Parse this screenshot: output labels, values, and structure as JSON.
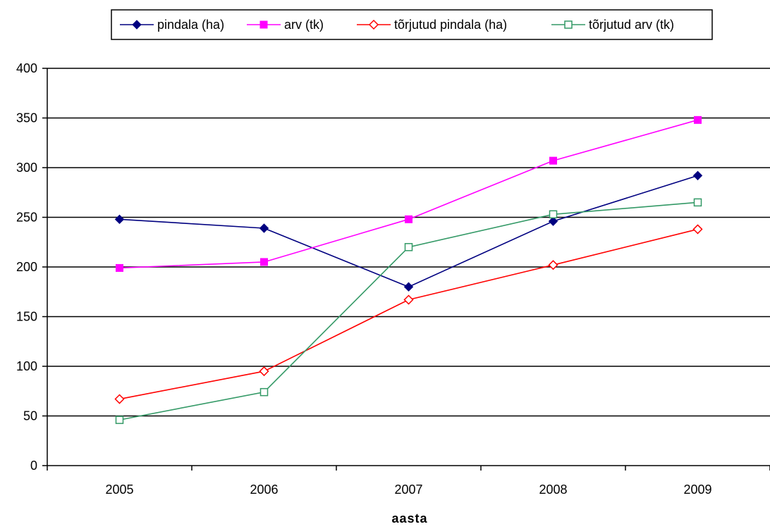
{
  "chart_data": {
    "type": "line",
    "title": "",
    "xlabel": "aasta",
    "ylabel": "",
    "categories": [
      "2005",
      "2006",
      "2007",
      "2008",
      "2009"
    ],
    "ylim": [
      0,
      400
    ],
    "yticks": [
      0,
      50,
      100,
      150,
      200,
      250,
      300,
      350,
      400
    ],
    "grid": true,
    "legend_position": "top",
    "series": [
      {
        "name": "pindala (ha)",
        "values": [
          248,
          239,
          180,
          246,
          292
        ],
        "color": "#000080",
        "marker": "diamond-filled"
      },
      {
        "name": "arv (tk)",
        "values": [
          199,
          205,
          248,
          307,
          348
        ],
        "color": "#ff00ff",
        "marker": "square-filled"
      },
      {
        "name": "tõrjutud pindala (ha)",
        "values": [
          67,
          95,
          167,
          202,
          238
        ],
        "color": "#ff0000",
        "marker": "diamond-open"
      },
      {
        "name": "tõrjutud arv (tk)",
        "values": [
          46,
          74,
          220,
          253,
          265
        ],
        "color": "#339966",
        "marker": "square-open"
      }
    ]
  }
}
